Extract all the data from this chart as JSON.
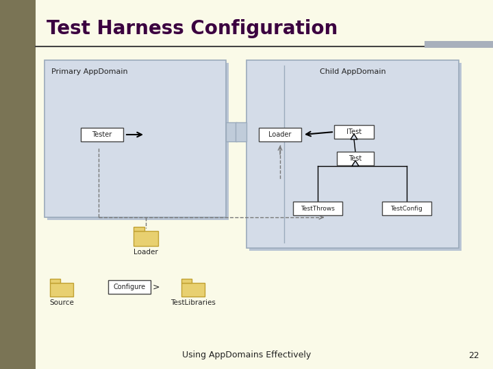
{
  "title": "Test Harness Configuration",
  "subtitle": "Using AppDomains Effectively",
  "page_num": "22",
  "bg_color": "#FAFAE8",
  "left_stripe_color": "#7A7455",
  "title_color": "#3B0040",
  "domain_bg": "#D4DCE8",
  "domain_border": "#9AAABB",
  "box_bg": "#FFFFFF",
  "box_border": "#444444",
  "folder_body": "#E8D070",
  "folder_edge": "#C8A830",
  "text_color": "#222222",
  "slide_bar_color": "#A8B0BC",
  "line_color": "#555555",
  "primary_domain_label": "Primary AppDomain",
  "child_domain_label": "Child AppDomain",
  "tester_label": "Tester",
  "loader_box_label": "Loader",
  "itest_label": "ITest",
  "test_label": "Test",
  "testthrows_label": "TestThrows",
  "testconfig_label": "TestConfig",
  "loader_folder_label": "Loader",
  "source_label": "Source",
  "configure_label": "Configure",
  "testlibs_label": "TestLibraries"
}
